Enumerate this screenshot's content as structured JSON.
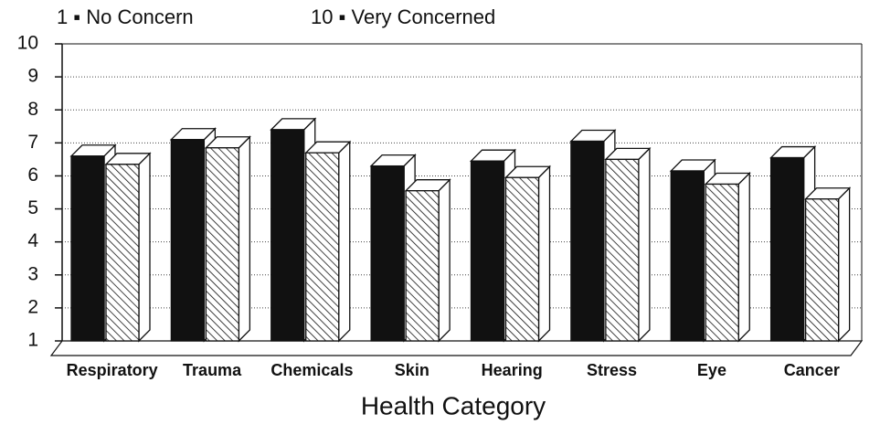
{
  "chart_data": {
    "type": "bar3d",
    "annotations": [
      "1 ▪ No Concern",
      "10 ▪ Very Concerned"
    ],
    "xlabel": "Health Category",
    "categories": [
      "Respiratory",
      "Trauma",
      "Chemicals",
      "Skin",
      "Hearing",
      "Stress",
      "Eye",
      "Cancer"
    ],
    "series": [
      {
        "color": "#111111",
        "values": [
          6.6,
          7.1,
          7.4,
          6.3,
          6.45,
          7.05,
          6.15,
          6.55
        ]
      },
      {
        "color": "#ffffff",
        "pattern": "hatch",
        "values": [
          6.35,
          6.85,
          6.7,
          5.55,
          5.95,
          6.5,
          5.75,
          5.3
        ]
      }
    ],
    "ylim": [
      1,
      10
    ],
    "yticks": [
      1,
      2,
      3,
      4,
      5,
      6,
      7,
      8,
      9,
      10
    ],
    "grid": true
  }
}
